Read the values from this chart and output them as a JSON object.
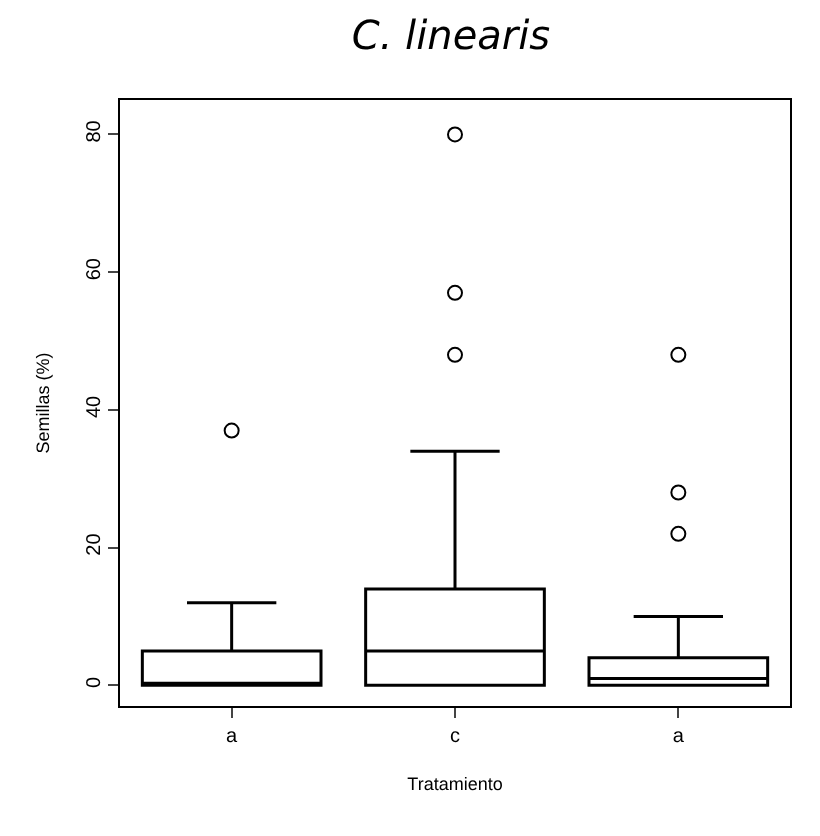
{
  "chart_data": {
    "type": "box",
    "title": "C. linearis",
    "xlabel": "Tratamiento",
    "ylabel": "Semillas (%)",
    "categories": [
      "a",
      "c",
      "a"
    ],
    "boxes": [
      {
        "low": 0,
        "q1": 0,
        "median": 0,
        "q3": 5,
        "high": 12,
        "outliers": [
          37
        ]
      },
      {
        "low": 0,
        "q1": 0,
        "median": 5,
        "q3": 14,
        "high": 34,
        "outliers": [
          48,
          57,
          80
        ]
      },
      {
        "low": 0,
        "q1": 0,
        "median": 1,
        "q3": 4,
        "high": 10,
        "outliers": [
          22,
          28,
          48
        ]
      }
    ],
    "color": "#000000",
    "ylim": [
      -3,
      85
    ],
    "yticks": [
      0,
      20,
      40,
      60,
      80
    ]
  }
}
